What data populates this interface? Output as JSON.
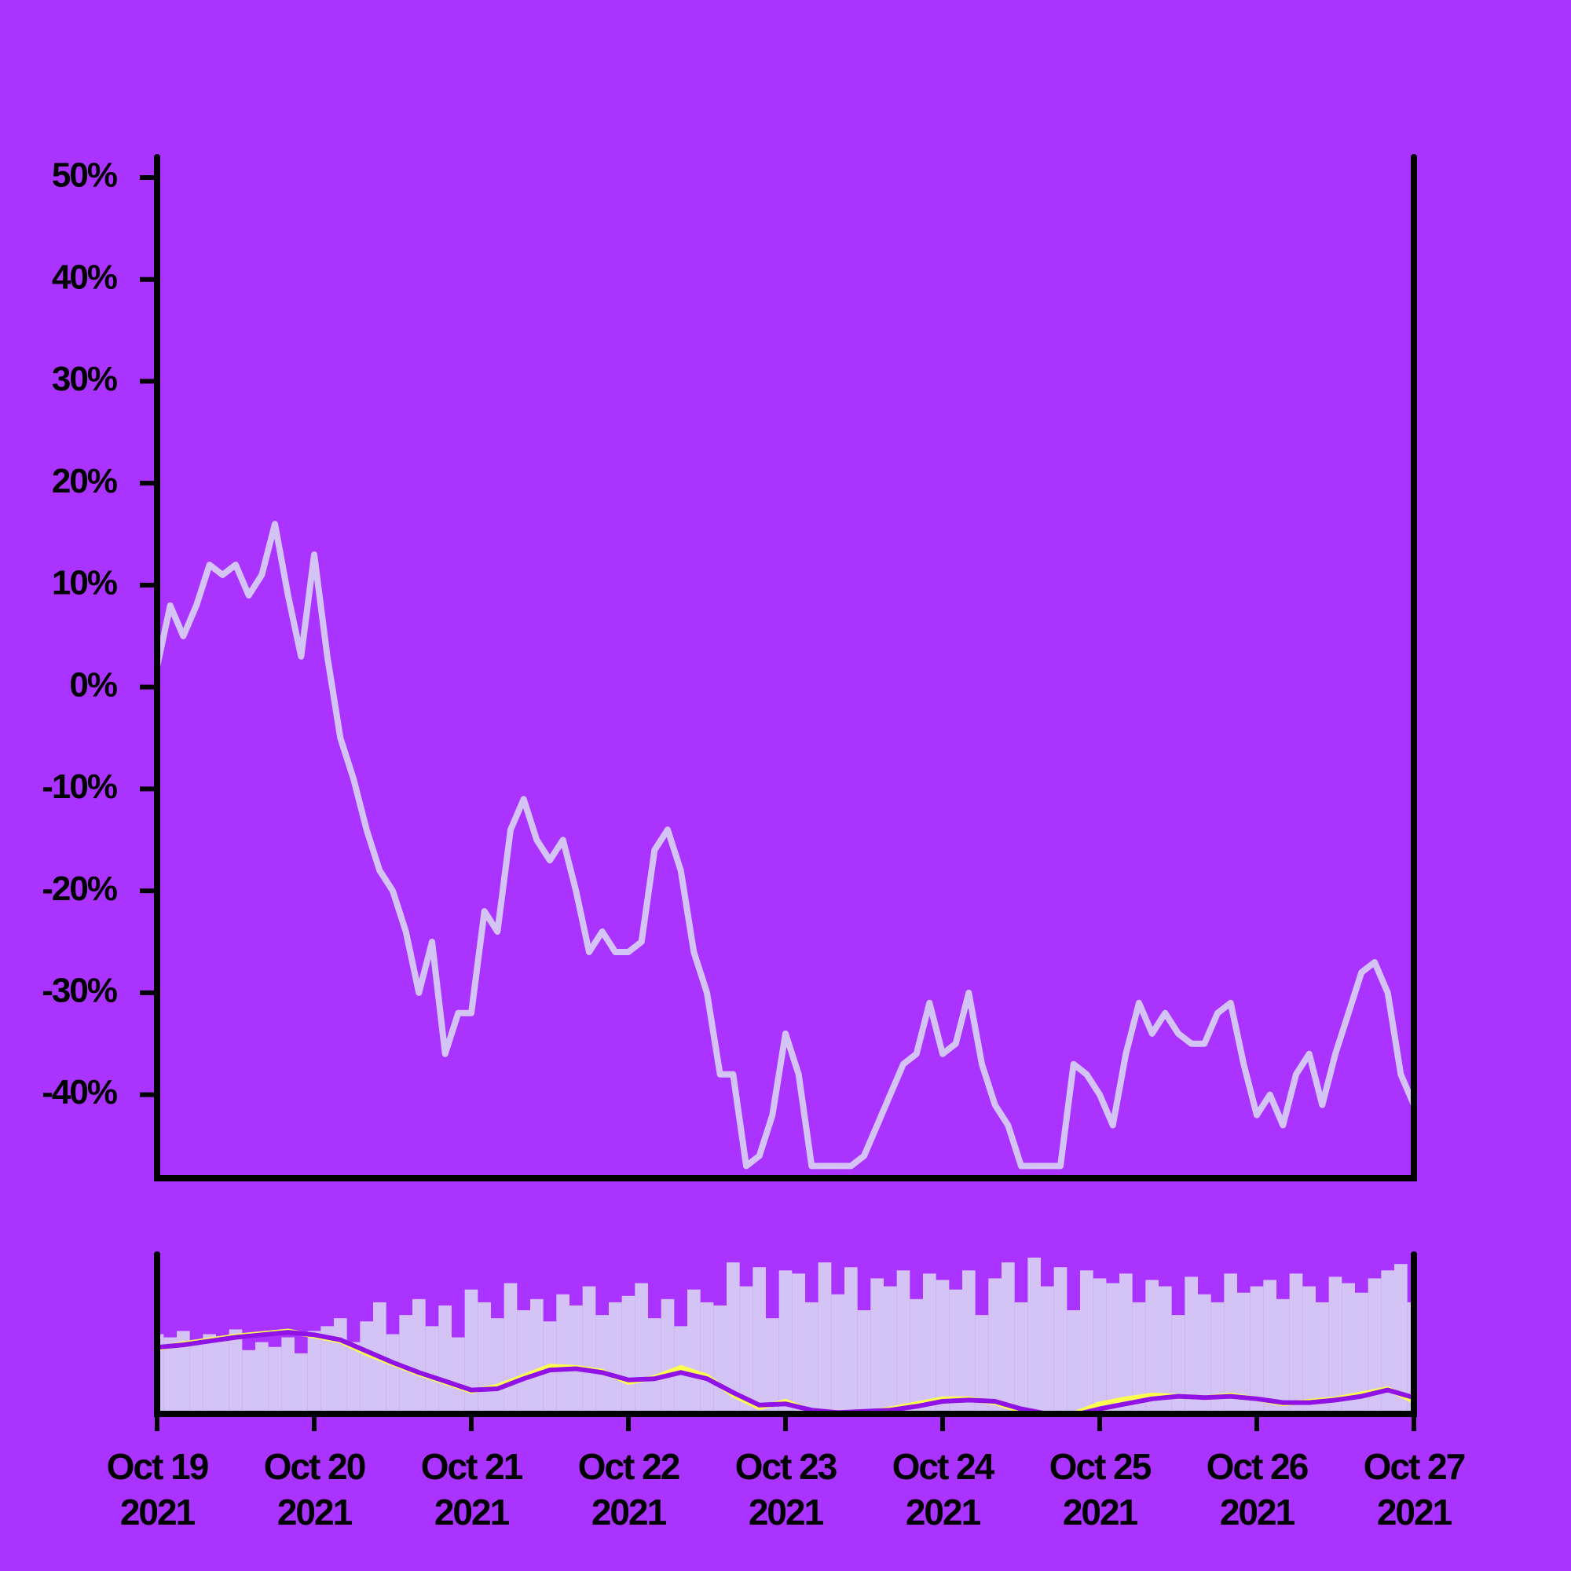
{
  "chart_data": [
    {
      "type": "line",
      "color": "#d4c4f6",
      "xlim": [
        "2021-10-19 00:00",
        "2021-10-27 00:00"
      ],
      "ylim": [
        -48.2,
        52
      ],
      "yticks": [
        {
          "value": 50,
          "label": "50%"
        },
        {
          "value": 40,
          "label": "40%"
        },
        {
          "value": 30,
          "label": "30%"
        },
        {
          "value": 20,
          "label": "20%"
        },
        {
          "value": 10,
          "label": "10%"
        },
        {
          "value": 0,
          "label": "0%"
        },
        {
          "value": -10,
          "label": "-10%"
        },
        {
          "value": -20,
          "label": "-20%"
        },
        {
          "value": -30,
          "label": "-30%"
        },
        {
          "value": -40,
          "label": "-40%"
        }
      ],
      "x": [
        "2021-10-19 00:00",
        "2021-10-19 02:00",
        "2021-10-19 04:00",
        "2021-10-19 06:00",
        "2021-10-19 08:00",
        "2021-10-19 10:00",
        "2021-10-19 12:00",
        "2021-10-19 14:00",
        "2021-10-19 16:00",
        "2021-10-19 18:00",
        "2021-10-19 20:00",
        "2021-10-19 22:00",
        "2021-10-20 00:00",
        "2021-10-20 02:00",
        "2021-10-20 04:00",
        "2021-10-20 06:00",
        "2021-10-20 08:00",
        "2021-10-20 10:00",
        "2021-10-20 12:00",
        "2021-10-20 14:00",
        "2021-10-20 16:00",
        "2021-10-20 18:00",
        "2021-10-20 20:00",
        "2021-10-20 22:00",
        "2021-10-21 00:00",
        "2021-10-21 02:00",
        "2021-10-21 04:00",
        "2021-10-21 06:00",
        "2021-10-21 08:00",
        "2021-10-21 10:00",
        "2021-10-21 12:00",
        "2021-10-21 14:00",
        "2021-10-21 16:00",
        "2021-10-21 18:00",
        "2021-10-21 20:00",
        "2021-10-21 22:00",
        "2021-10-22 00:00",
        "2021-10-22 02:00",
        "2021-10-22 04:00",
        "2021-10-22 06:00",
        "2021-10-22 08:00",
        "2021-10-22 10:00",
        "2021-10-22 12:00",
        "2021-10-22 14:00",
        "2021-10-22 16:00",
        "2021-10-22 18:00",
        "2021-10-22 20:00",
        "2021-10-22 22:00",
        "2021-10-23 00:00",
        "2021-10-23 02:00",
        "2021-10-23 04:00",
        "2021-10-23 06:00",
        "2021-10-23 08:00",
        "2021-10-23 10:00",
        "2021-10-23 12:00",
        "2021-10-23 14:00",
        "2021-10-23 16:00",
        "2021-10-23 18:00",
        "2021-10-23 20:00",
        "2021-10-23 22:00",
        "2021-10-24 00:00",
        "2021-10-24 02:00",
        "2021-10-24 04:00",
        "2021-10-24 06:00",
        "2021-10-24 08:00",
        "2021-10-24 10:00",
        "2021-10-24 12:00",
        "2021-10-24 14:00",
        "2021-10-24 16:00",
        "2021-10-24 18:00",
        "2021-10-24 20:00",
        "2021-10-24 22:00",
        "2021-10-25 00:00",
        "2021-10-25 02:00",
        "2021-10-25 04:00",
        "2021-10-25 06:00",
        "2021-10-25 08:00",
        "2021-10-25 10:00",
        "2021-10-25 12:00",
        "2021-10-25 14:00",
        "2021-10-25 16:00",
        "2021-10-25 18:00",
        "2021-10-25 20:00",
        "2021-10-25 22:00",
        "2021-10-26 00:00",
        "2021-10-26 02:00",
        "2021-10-26 04:00",
        "2021-10-26 06:00",
        "2021-10-26 08:00",
        "2021-10-26 10:00",
        "2021-10-26 12:00",
        "2021-10-26 14:00",
        "2021-10-26 16:00",
        "2021-10-26 18:00",
        "2021-10-26 20:00",
        "2021-10-26 22:00",
        "2021-10-27 00:00"
      ],
      "values": [
        2,
        8,
        5,
        8,
        12,
        11,
        12,
        9,
        11,
        16,
        9,
        3,
        13,
        3,
        -5,
        -9,
        -14,
        -18,
        -20,
        -24,
        -30,
        -25,
        -36,
        -32,
        -32,
        -22,
        -24,
        -14,
        -11,
        -15,
        -17,
        -15,
        -20,
        -26,
        -24,
        -26,
        -26,
        -25,
        -16,
        -14,
        -18,
        -26,
        -30,
        -38,
        -38,
        -47,
        -46,
        -42,
        -34,
        -38,
        -47,
        -47,
        -47,
        -47,
        -46,
        -43,
        -40,
        -37,
        -36,
        -31,
        -36,
        -35,
        -30,
        -37,
        -41,
        -43,
        -47,
        -47,
        -47,
        -47,
        -37,
        -38,
        -40,
        -43,
        -36,
        -31,
        -34,
        -32,
        -34,
        -35,
        -35,
        -32,
        -31,
        -37,
        -42,
        -40,
        -43,
        -38,
        -36,
        -41,
        -36,
        -32,
        -28,
        -27,
        -30,
        -38,
        -41
      ]
    },
    {
      "type": "volume",
      "color": "#d4c4f6",
      "xlim": [
        "2021-10-19 00:00",
        "2021-10-27 00:00"
      ],
      "ylim": [
        0,
        100
      ],
      "y2lim": [
        -50,
        77
      ],
      "xticks": [
        {
          "value": "2021-10-19 00:00",
          "label": [
            "Oct 19",
            "2021"
          ]
        },
        {
          "value": "2021-10-20 00:00",
          "label": [
            "Oct 20",
            "2021"
          ]
        },
        {
          "value": "2021-10-21 00:00",
          "label": [
            "Oct 21",
            "2021"
          ]
        },
        {
          "value": "2021-10-22 00:00",
          "label": [
            "Oct 22",
            "2021"
          ]
        },
        {
          "value": "2021-10-23 00:00",
          "label": [
            "Oct 23",
            "2021"
          ]
        },
        {
          "value": "2021-10-24 00:00",
          "label": [
            "Oct 24",
            "2021"
          ]
        },
        {
          "value": "2021-10-25 00:00",
          "label": [
            "Oct 25",
            "2021"
          ]
        },
        {
          "value": "2021-10-26 00:00",
          "label": [
            "Oct 26",
            "2021"
          ]
        },
        {
          "value": "2021-10-27 00:00",
          "label": [
            "Oct 27",
            "2021"
          ]
        }
      ],
      "values": [
        50,
        48,
        52,
        44,
        50,
        47,
        53,
        40,
        45,
        42,
        48,
        38,
        52,
        55,
        60,
        45,
        58,
        70,
        50,
        62,
        72,
        55,
        68,
        48,
        78,
        70,
        60,
        82,
        65,
        72,
        58,
        75,
        68,
        80,
        62,
        70,
        74,
        82,
        60,
        72,
        55,
        78,
        70,
        68,
        95,
        80,
        92,
        60,
        90,
        88,
        70,
        95,
        75,
        92,
        65,
        85,
        80,
        90,
        72,
        88,
        84,
        78,
        90,
        62,
        85,
        95,
        70,
        98,
        80,
        92,
        65,
        90,
        85,
        82,
        88,
        70,
        84,
        80,
        62,
        86,
        75,
        70,
        88,
        76,
        80,
        84,
        72,
        88,
        80,
        70,
        86,
        82,
        76,
        85,
        90,
        94,
        70
      ],
      "series": [
        {
          "color": "#ffff4d",
          "axis": "y2",
          "x": [
            "2021-10-19 00:00",
            "2021-10-19 04:00",
            "2021-10-19 08:00",
            "2021-10-19 12:00",
            "2021-10-19 16:00",
            "2021-10-19 20:00",
            "2021-10-20 00:00",
            "2021-10-20 04:00",
            "2021-10-20 08:00",
            "2021-10-20 12:00",
            "2021-10-20 16:00",
            "2021-10-20 20:00",
            "2021-10-21 00:00",
            "2021-10-21 04:00",
            "2021-10-21 08:00",
            "2021-10-21 12:00",
            "2021-10-21 16:00",
            "2021-10-21 20:00",
            "2021-10-22 00:00",
            "2021-10-22 04:00",
            "2021-10-22 08:00",
            "2021-10-22 12:00",
            "2021-10-22 16:00",
            "2021-10-22 20:00",
            "2021-10-23 00:00",
            "2021-10-23 04:00",
            "2021-10-23 08:00",
            "2021-10-23 12:00",
            "2021-10-23 16:00",
            "2021-10-23 20:00",
            "2021-10-24 00:00",
            "2021-10-24 04:00",
            "2021-10-24 08:00",
            "2021-10-24 12:00",
            "2021-10-24 16:00",
            "2021-10-24 20:00",
            "2021-10-25 00:00",
            "2021-10-25 04:00",
            "2021-10-25 08:00",
            "2021-10-25 12:00",
            "2021-10-25 16:00",
            "2021-10-25 20:00",
            "2021-10-26 00:00",
            "2021-10-26 04:00",
            "2021-10-26 08:00",
            "2021-10-26 12:00",
            "2021-10-26 16:00",
            "2021-10-26 20:00",
            "2021-10-27 00:00"
          ],
          "values": [
            2,
            6,
            9,
            12,
            14,
            16,
            12,
            8,
            -2,
            -10,
            -18,
            -25,
            -32,
            -28,
            -20,
            -12,
            -13,
            -16,
            -25,
            -21,
            -13,
            -20,
            -35,
            -45,
            -40,
            -48,
            -50,
            -49,
            -46,
            -42,
            -38,
            -38,
            -41,
            -48,
            -51,
            -50,
            -42,
            -38,
            -35,
            -36,
            -37,
            -35,
            -38,
            -42,
            -40,
            -38,
            -34,
            -30,
            -40
          ]
        },
        {
          "color": "#9012e6",
          "axis": "y2",
          "x": [
            "2021-10-19 00:00",
            "2021-10-19 04:00",
            "2021-10-19 08:00",
            "2021-10-19 12:00",
            "2021-10-19 16:00",
            "2021-10-19 20:00",
            "2021-10-20 00:00",
            "2021-10-20 04:00",
            "2021-10-20 08:00",
            "2021-10-20 12:00",
            "2021-10-20 16:00",
            "2021-10-20 20:00",
            "2021-10-21 00:00",
            "2021-10-21 04:00",
            "2021-10-21 08:00",
            "2021-10-21 12:00",
            "2021-10-21 16:00",
            "2021-10-21 20:00",
            "2021-10-22 00:00",
            "2021-10-22 04:00",
            "2021-10-22 08:00",
            "2021-10-22 12:00",
            "2021-10-22 16:00",
            "2021-10-22 20:00",
            "2021-10-23 00:00",
            "2021-10-23 04:00",
            "2021-10-23 08:00",
            "2021-10-23 12:00",
            "2021-10-23 16:00",
            "2021-10-23 20:00",
            "2021-10-24 00:00",
            "2021-10-24 04:00",
            "2021-10-24 08:00",
            "2021-10-24 12:00",
            "2021-10-24 16:00",
            "2021-10-24 20:00",
            "2021-10-25 00:00",
            "2021-10-25 04:00",
            "2021-10-25 08:00",
            "2021-10-25 12:00",
            "2021-10-25 16:00",
            "2021-10-25 20:00",
            "2021-10-26 00:00",
            "2021-10-26 04:00",
            "2021-10-26 08:00",
            "2021-10-26 12:00",
            "2021-10-26 16:00",
            "2021-10-26 20:00",
            "2021-10-27 00:00"
          ],
          "values": [
            3,
            5,
            8,
            11,
            13,
            15,
            13,
            9,
            0,
            -9,
            -17,
            -24,
            -31,
            -30,
            -22,
            -15,
            -14,
            -17,
            -23,
            -22,
            -17,
            -22,
            -33,
            -43,
            -42,
            -47,
            -49,
            -48,
            -47,
            -44,
            -40,
            -39,
            -40,
            -46,
            -50,
            -51,
            -46,
            -42,
            -38,
            -36,
            -37,
            -36,
            -38,
            -41,
            -41,
            -39,
            -36,
            -31,
            -37
          ]
        }
      ]
    }
  ]
}
